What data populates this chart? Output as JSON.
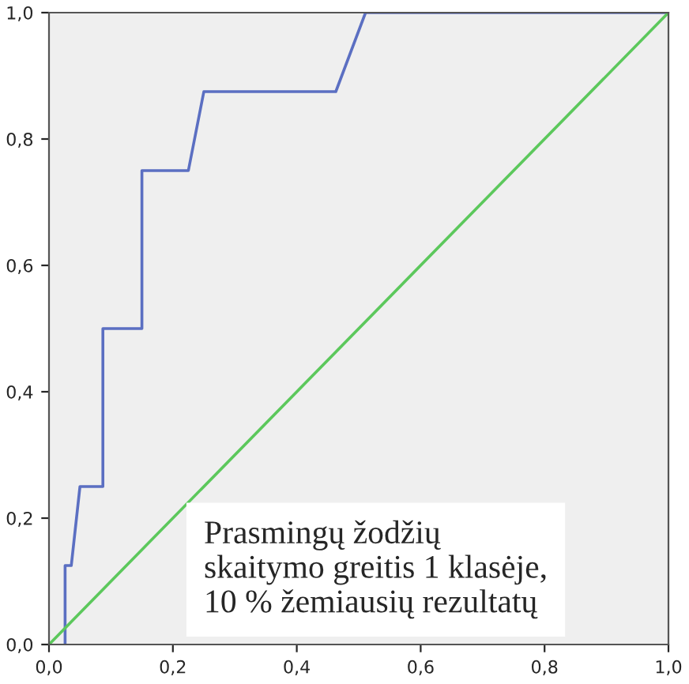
{
  "chart_data": {
    "type": "line",
    "xlim": [
      0,
      1
    ],
    "ylim": [
      0,
      1
    ],
    "xticks": [
      {
        "value": 0,
        "label": "0,0"
      },
      {
        "value": 0.2,
        "label": "0,2"
      },
      {
        "value": 0.4,
        "label": "0,4"
      },
      {
        "value": 0.6,
        "label": "0,6"
      },
      {
        "value": 0.8,
        "label": "0,8"
      },
      {
        "value": 1,
        "label": "1,0"
      }
    ],
    "yticks": [
      {
        "value": 0,
        "label": "0,0"
      },
      {
        "value": 0.2,
        "label": "0,2"
      },
      {
        "value": 0.4,
        "label": "0,4"
      },
      {
        "value": 0.6,
        "label": "0,6"
      },
      {
        "value": 0.8,
        "label": "0,8"
      },
      {
        "value": 1,
        "label": "1,0"
      }
    ],
    "series": [
      {
        "color": "#5b6fc2",
        "x": [
          0.026,
          0.026,
          0.036,
          0.05,
          0.087,
          0.087,
          0.15,
          0.15,
          0.225,
          0.25,
          0.463,
          0.511,
          1
        ],
        "values": [
          0,
          0.125,
          0.125,
          0.25,
          0.25,
          0.5,
          0.5,
          0.75,
          0.75,
          0.875,
          0.875,
          1,
          1
        ]
      },
      {
        "color": "#5cc85c",
        "x": [
          0,
          1
        ],
        "values": [
          0,
          1
        ]
      }
    ],
    "grid": false,
    "marker": "none",
    "line_style": "solid",
    "annotations": [
      "Prasmingų žodžių\nskaitymo greitis 1 klasėje,\n10 % žemiausių rezultatų"
    ]
  }
}
